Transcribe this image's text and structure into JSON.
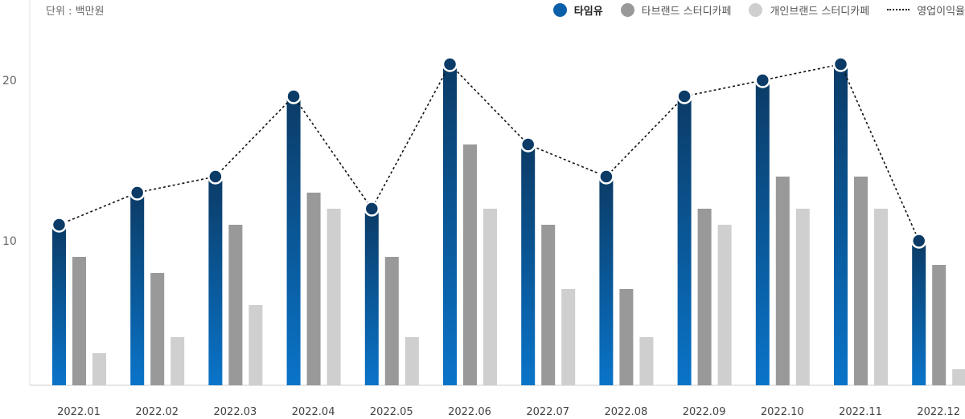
{
  "unit_label": "단위 : 백만원",
  "legend": [
    {
      "label": "타임유",
      "color": "#0a5fa8",
      "type": "dot",
      "bold": true
    },
    {
      "label": "타브랜드 스터디카페",
      "color": "#999999",
      "type": "dot",
      "bold": false
    },
    {
      "label": "개인브랜드 스터디카페",
      "color": "#cfcfcf",
      "type": "dot",
      "bold": false
    },
    {
      "label": "영업이익율",
      "color": "#111111",
      "type": "dash",
      "bold": false
    }
  ],
  "chart_data": {
    "type": "bar",
    "categories": [
      "2022.01",
      "2022.02",
      "2022.03",
      "2022.04",
      "2022.05",
      "2022.06",
      "2022.07",
      "2022.08",
      "2022.09",
      "2022.10",
      "2022.11",
      "2022.12"
    ],
    "series": [
      {
        "name": "타임유",
        "values": [
          11,
          13,
          14,
          19,
          12,
          21,
          16,
          14,
          19,
          20,
          21,
          10
        ]
      },
      {
        "name": "타브랜드 스터디카페",
        "values": [
          9,
          8,
          11,
          13,
          9,
          16,
          11,
          7,
          12,
          14,
          14,
          8.5
        ]
      },
      {
        "name": "개인브랜드 스터디카페",
        "values": [
          3,
          4,
          6,
          12,
          4,
          12,
          7,
          4,
          11,
          12,
          12,
          2
        ]
      },
      {
        "name": "영업이익율",
        "type": "line",
        "values": [
          11,
          13,
          14,
          19,
          12,
          21,
          16,
          14,
          19,
          20,
          21,
          10
        ]
      }
    ],
    "ylim": [
      1,
      23
    ],
    "yticks": [
      10,
      20
    ],
    "grid": false,
    "legend_position": "top-right"
  }
}
